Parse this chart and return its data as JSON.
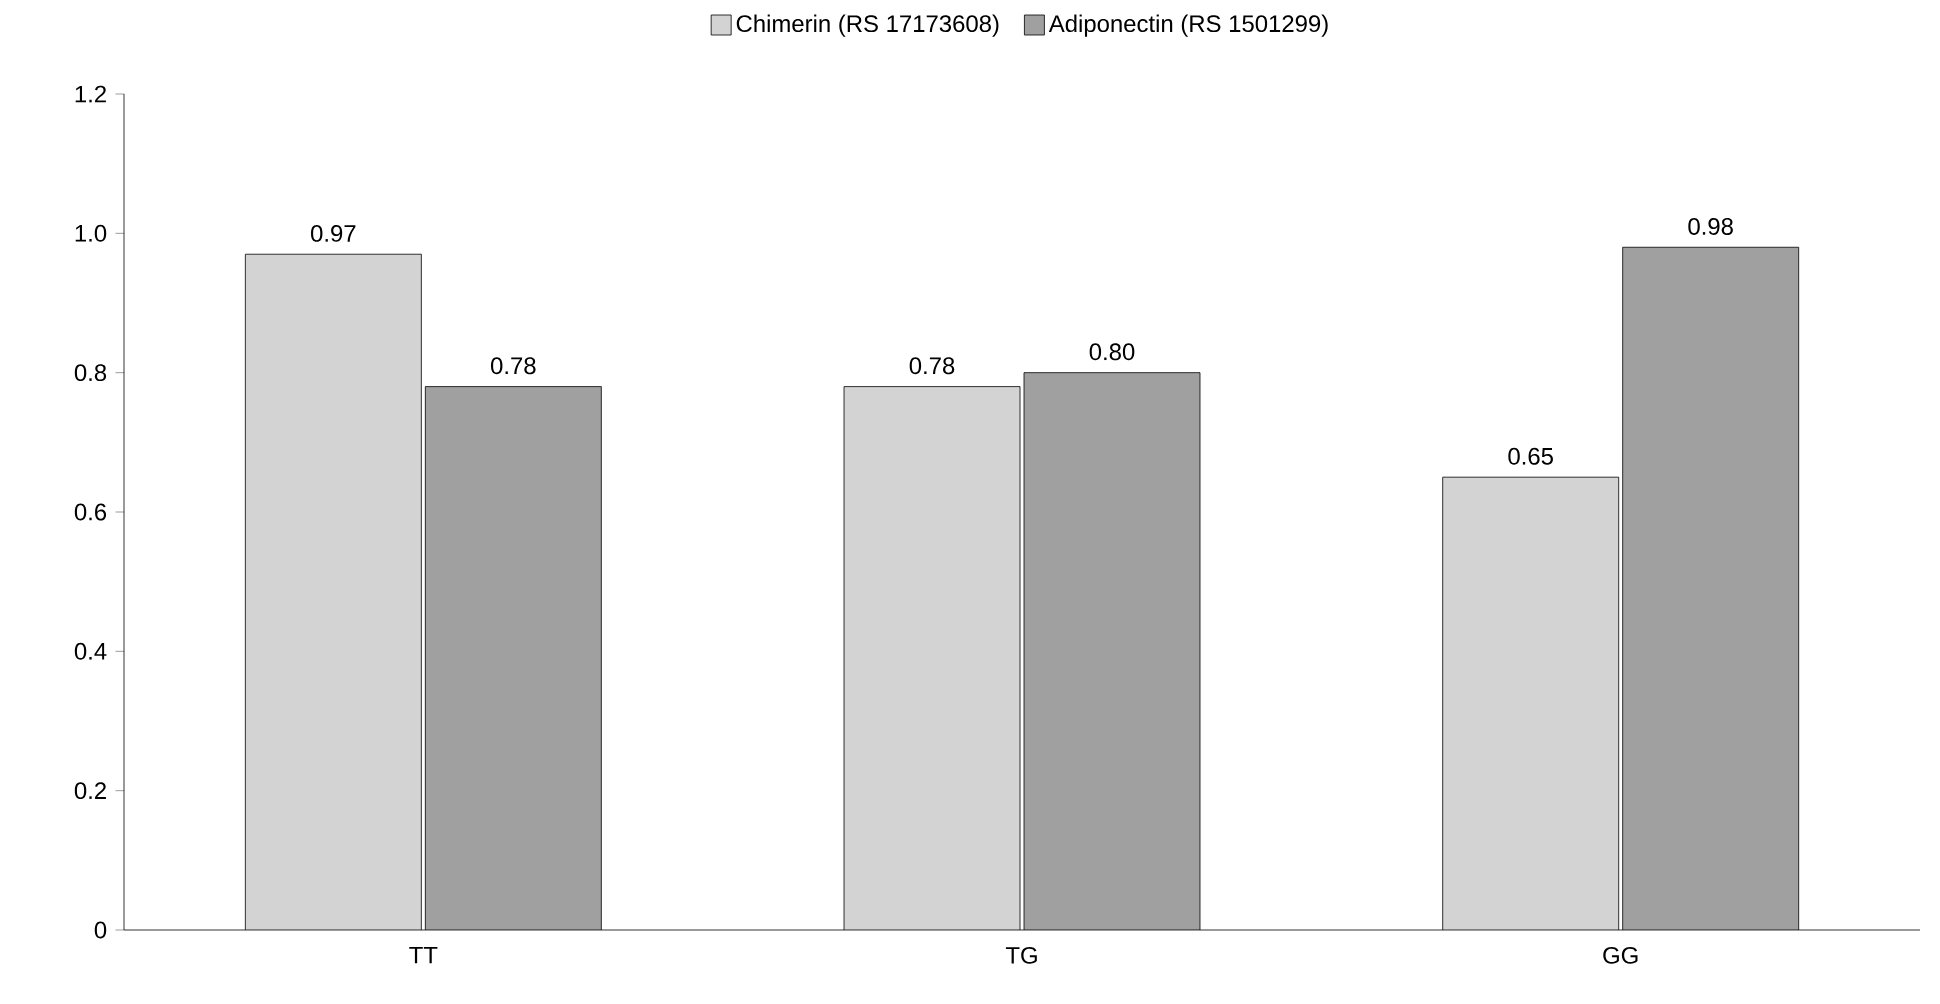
{
  "chart_data": {
    "type": "bar",
    "categories": [
      "TT",
      "TG",
      "GG"
    ],
    "series": [
      {
        "name": "Chimerin (RS 17173608)",
        "color": "#d3d3d3",
        "values": [
          0.97,
          0.78,
          0.65
        ],
        "value_labels": [
          "0.97",
          "0.78",
          "0.65"
        ]
      },
      {
        "name": "Adiponectin (RS 1501299)",
        "color": "#a0a0a0",
        "values": [
          0.78,
          0.8,
          0.98
        ],
        "value_labels": [
          "0.78",
          "0.80",
          "0.98"
        ]
      }
    ],
    "ylim": [
      0,
      1.2
    ],
    "yticks": [
      {
        "value": 0,
        "label": "0"
      },
      0.2,
      0.4,
      0.6,
      0.8,
      {
        "value": 1.0,
        "label": "1.0"
      },
      1.2
    ],
    "legend": "top",
    "grid": false
  }
}
